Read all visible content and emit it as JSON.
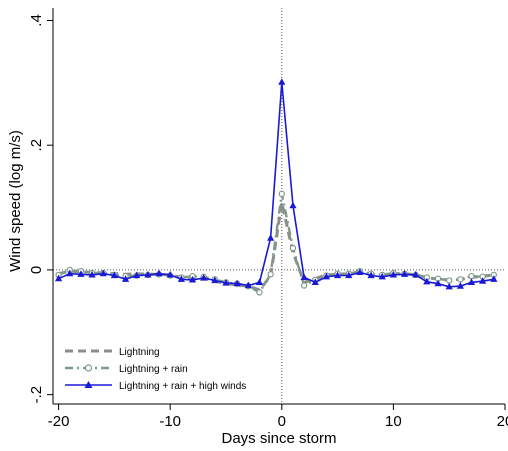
{
  "chart_data": {
    "type": "line",
    "title": "",
    "xlabel": "Days since storm",
    "ylabel": "Wind speed (log m/s)",
    "xlim": [
      -20.5,
      20
    ],
    "ylim": [
      -0.215,
      0.42
    ],
    "xticks": [
      -20,
      -10,
      0,
      10,
      20
    ],
    "xtick_labels": [
      "-20",
      "-10",
      "0",
      "10",
      "20"
    ],
    "yticks": [
      -0.2,
      0,
      0.2,
      0.4
    ],
    "ytick_labels": [
      "-.2",
      "0",
      ".2",
      ".4"
    ],
    "reference_lines": {
      "x": 0,
      "y": 0
    },
    "legend_position": "bottom-left",
    "x": [
      -20,
      -19,
      -18,
      -17,
      -16,
      -15,
      -14,
      -13,
      -12,
      -11,
      -10,
      -9,
      -8,
      -7,
      -6,
      -5,
      -4,
      -3,
      -2,
      -1,
      0,
      1,
      2,
      3,
      4,
      5,
      6,
      7,
      8,
      9,
      10,
      11,
      12,
      13,
      14,
      15,
      16,
      17,
      18,
      19
    ],
    "series": [
      {
        "name": "Lightning",
        "color": "#8c8c8c",
        "marker": "none",
        "dash": "dash",
        "values": [
          -0.006,
          -0.002,
          -0.003,
          -0.004,
          -0.005,
          -0.006,
          -0.007,
          -0.006,
          -0.007,
          -0.007,
          -0.008,
          -0.012,
          -0.012,
          -0.013,
          -0.018,
          -0.022,
          -0.024,
          -0.026,
          -0.032,
          -0.01,
          0.108,
          0.028,
          -0.02,
          -0.014,
          -0.008,
          -0.007,
          -0.006,
          -0.004,
          -0.007,
          -0.008,
          -0.006,
          -0.006,
          -0.008,
          -0.012,
          -0.015,
          -0.016,
          -0.015,
          -0.012,
          -0.01,
          -0.008
        ]
      },
      {
        "name": "Lightning + rain",
        "color": "#7f9a8a",
        "marker": "circle",
        "dash": "dashdot",
        "values": [
          -0.008,
          0.0,
          -0.002,
          -0.005,
          -0.005,
          -0.008,
          -0.01,
          -0.009,
          -0.008,
          -0.007,
          -0.009,
          -0.012,
          -0.01,
          -0.011,
          -0.015,
          -0.02,
          -0.022,
          -0.026,
          -0.036,
          -0.007,
          0.122,
          0.035,
          -0.025,
          -0.016,
          -0.009,
          -0.006,
          -0.006,
          -0.002,
          -0.006,
          -0.008,
          -0.005,
          -0.006,
          -0.008,
          -0.012,
          -0.014,
          -0.017,
          -0.015,
          -0.01,
          -0.011,
          -0.008
        ]
      },
      {
        "name": "Lightning + rain + high winds",
        "color": "#1a1ad6",
        "marker": "triangle",
        "dash": "solid",
        "values": [
          -0.014,
          -0.006,
          -0.007,
          -0.008,
          -0.006,
          -0.009,
          -0.015,
          -0.009,
          -0.008,
          -0.006,
          -0.008,
          -0.015,
          -0.016,
          -0.013,
          -0.017,
          -0.021,
          -0.022,
          -0.025,
          -0.02,
          0.051,
          0.301,
          0.103,
          -0.012,
          -0.02,
          -0.011,
          -0.009,
          -0.009,
          -0.004,
          -0.009,
          -0.011,
          -0.008,
          -0.007,
          -0.008,
          -0.019,
          -0.022,
          -0.027,
          -0.026,
          -0.02,
          -0.018,
          -0.015
        ]
      }
    ]
  }
}
